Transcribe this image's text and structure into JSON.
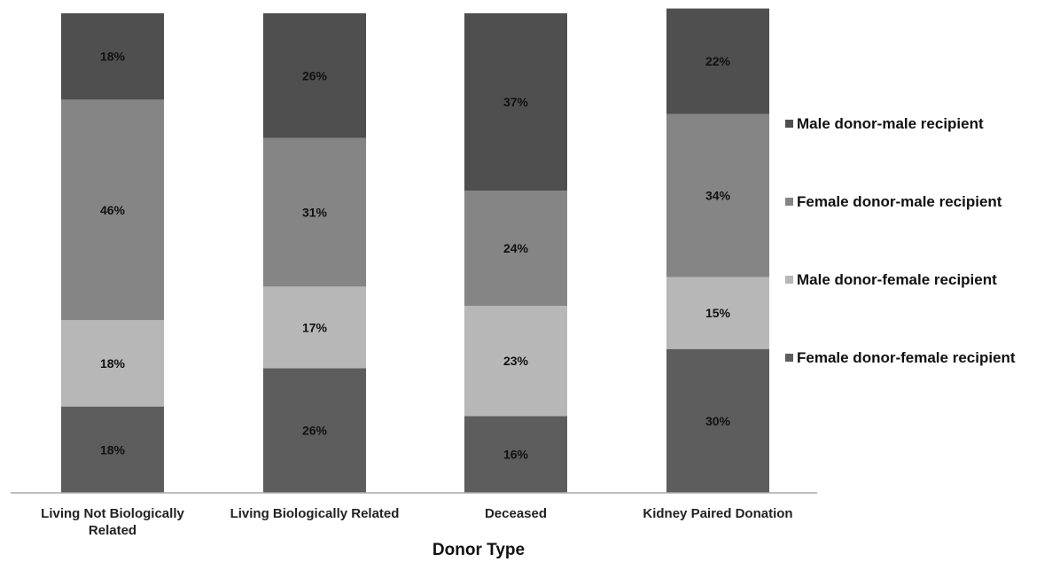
{
  "chart_data": {
    "type": "bar",
    "stacked": true,
    "percent": true,
    "title": "",
    "xlabel": "Donor Type",
    "ylabel": "",
    "ylim": [
      0,
      100
    ],
    "grid": false,
    "legend_position": "right",
    "categories": [
      [
        "Living Not Biologically",
        "Related"
      ],
      [
        "Living Biologically Related"
      ],
      [
        "Deceased"
      ],
      [
        "Kidney Paired Donation"
      ]
    ],
    "series": [
      {
        "name": "Female donor-female recipient",
        "color": "#5d5d5d",
        "values": [
          18,
          26,
          16,
          30
        ]
      },
      {
        "name": "Male donor-female recipient",
        "color": "#b7b7b7",
        "values": [
          18,
          17,
          23,
          15
        ]
      },
      {
        "name": "Female donor-male recipient",
        "color": "#858585",
        "values": [
          46,
          31,
          24,
          34
        ]
      },
      {
        "name": "Male donor-male recipient",
        "color": "#4f4f4f",
        "values": [
          18,
          26,
          37,
          22
        ]
      }
    ],
    "legend_order": [
      "Male donor-male recipient",
      "Female donor-male recipient",
      "Male donor-female recipient",
      "Female donor-female recipient"
    ],
    "value_suffix": "%"
  }
}
